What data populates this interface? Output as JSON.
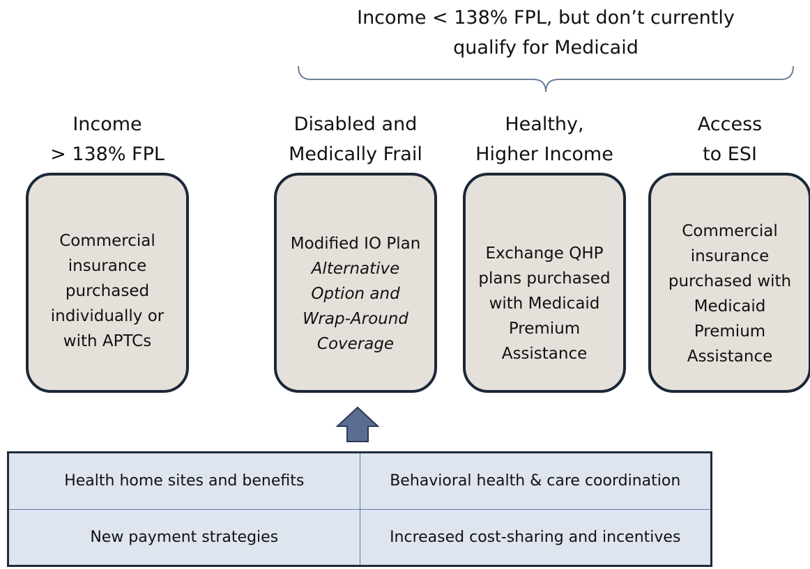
{
  "bracket_label": [
    "Income < 138% FPL, but don’t currently",
    "qualify for Medicaid"
  ],
  "columns": [
    {
      "heading": [
        "Income",
        "> 138% FPL"
      ],
      "box": [
        "Commercial",
        "insurance",
        "purchased",
        "individually or",
        "with APTCs"
      ],
      "box_italic": []
    },
    {
      "heading": [
        "Disabled and",
        "Medically Frail"
      ],
      "box": [
        "Modified IO Plan"
      ],
      "box_italic": [
        "Alternative",
        "Option and",
        "Wrap-Around",
        "Coverage"
      ]
    },
    {
      "heading": [
        "Healthy,",
        "Higher Income"
      ],
      "box": [
        "Exchange QHP",
        "plans purchased",
        "with Medicaid",
        "Premium",
        "Assistance"
      ],
      "box_italic": []
    },
    {
      "heading": [
        "Access",
        "to ESI"
      ],
      "box": [
        "Commercial",
        "insurance",
        "purchased with",
        "Medicaid",
        "Premium",
        "Assistance"
      ],
      "box_italic": []
    }
  ],
  "table": {
    "rows": [
      [
        "Health home sites and benefits",
        "Behavioral health & care coordination"
      ],
      [
        "New payment strategies",
        "Increased cost-sharing and incentives"
      ]
    ]
  }
}
